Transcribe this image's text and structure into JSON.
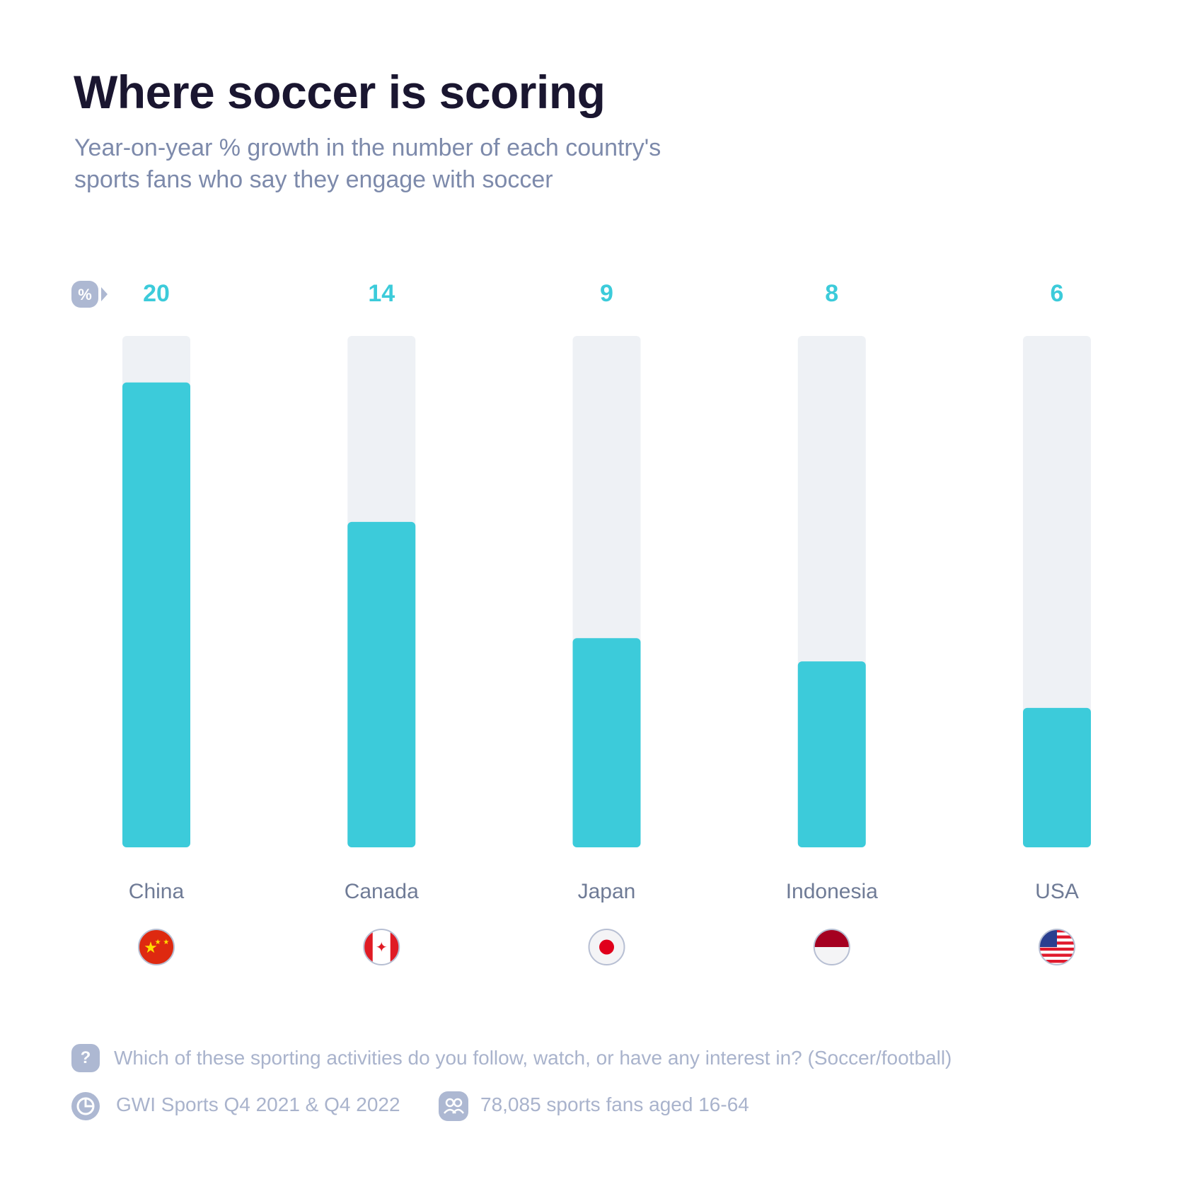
{
  "title": "Where soccer is scoring",
  "subtitle_lines": [
    "Year-on-year % growth in the number of each country's",
    "sports fans who say they engage with soccer"
  ],
  "unit_badge": "%",
  "chart_data": {
    "type": "bar",
    "categories": [
      "China",
      "Canada",
      "Japan",
      "Indonesia",
      "USA"
    ],
    "values": [
      20,
      14,
      9,
      8,
      6
    ],
    "ylim": [
      0,
      22
    ],
    "unit": "%",
    "flags": [
      "china-flag-icon",
      "canada-flag-icon",
      "japan-flag-icon",
      "indonesia-flag-icon",
      "usa-flag-icon"
    ],
    "colors": {
      "bar": "#3ccbda",
      "track": "#eef1f5",
      "label": "#3ccbda"
    },
    "grid": false
  },
  "footer": {
    "question_icon": "?",
    "question": "Which of these sporting activities do you follow, watch, or have any interest in? (Soccer/football)",
    "source": "GWI Sports Q4 2021 & Q4 2022",
    "sample": "78,085 sports fans aged 16-64"
  }
}
